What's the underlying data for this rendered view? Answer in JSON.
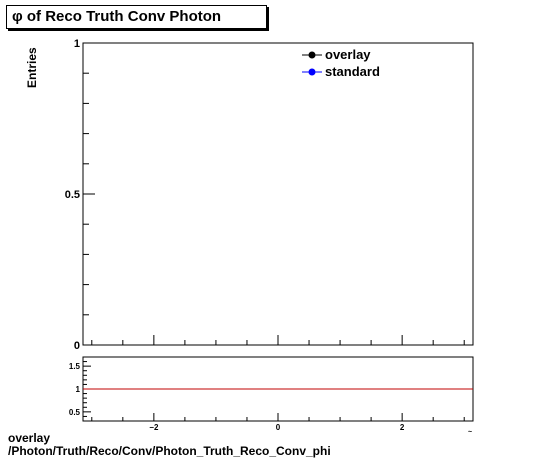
{
  "title": "φ of Reco Truth Conv Photon",
  "footer": {
    "line1": "overlay",
    "line2": "/Photon/Truth/Reco/Conv/Photon_Truth_Reco_Conv_phi"
  },
  "colors": {
    "overlay": "#000000",
    "standard": "#0000ff",
    "ratio_line": "#c00000"
  },
  "chart_data": [
    {
      "type": "line",
      "title": "φ of Reco Truth Conv Photon",
      "xlabel": "",
      "ylabel": "Entries",
      "xlim": [
        -3.1416,
        3.1416
      ],
      "ylim": [
        0,
        1
      ],
      "y_ticks": [
        {
          "value": 0,
          "label": "0"
        },
        {
          "value": 0.5,
          "label": "0.5"
        },
        {
          "value": 1,
          "label": "1"
        }
      ],
      "legend_position": "top-right",
      "series": [
        {
          "name": "overlay",
          "color": "#000000",
          "x": [],
          "y": []
        },
        {
          "name": "standard",
          "color": "#0000ff",
          "x": [],
          "y": []
        }
      ]
    },
    {
      "type": "line",
      "title": "",
      "xlim": [
        -3.1416,
        3.1416
      ],
      "ylim": [
        0.3,
        1.7
      ],
      "x_ticks": [
        {
          "value": -2,
          "label": "−2"
        },
        {
          "value": 0,
          "label": "0"
        },
        {
          "value": 2,
          "label": "2"
        }
      ],
      "y_ticks": [
        {
          "value": 0.5,
          "label": "0.5"
        },
        {
          "value": 1,
          "label": "1"
        },
        {
          "value": 1.5,
          "label": "1.5"
        }
      ],
      "reference_line": 1
    }
  ]
}
